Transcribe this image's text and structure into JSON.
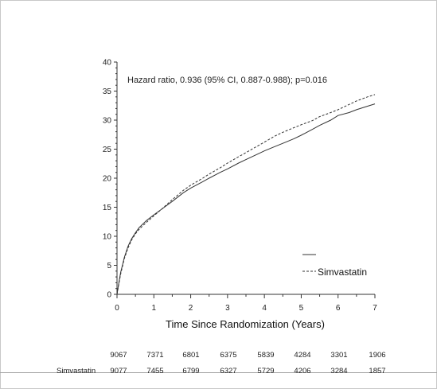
{
  "chart_data": {
    "type": "line",
    "title": "",
    "annotation": "Hazard ratio, 0.936 (95% CI, 0.887-0.988); p=0.016",
    "xlabel": "Time Since Randomization (Years)",
    "ylabel": "",
    "xlim": [
      0,
      7
    ],
    "ylim": [
      0,
      40
    ],
    "x_ticks": [
      0,
      1,
      2,
      3,
      4,
      5,
      6,
      7
    ],
    "y_ticks": [
      0,
      5,
      10,
      15,
      20,
      25,
      30,
      35,
      40
    ],
    "grid": false,
    "legend": {
      "placement": "bottom-right",
      "entries": [
        "",
        "Simvastatin"
      ]
    },
    "series": [
      {
        "name": "",
        "style": "solid",
        "x": [
          0,
          0.05,
          0.1,
          0.2,
          0.3,
          0.4,
          0.5,
          0.6,
          0.8,
          1.0,
          1.2,
          1.5,
          1.8,
          2.0,
          2.3,
          2.5,
          2.8,
          3.0,
          3.3,
          3.5,
          3.8,
          4.0,
          4.3,
          4.5,
          4.8,
          5.0,
          5.3,
          5.5,
          5.8,
          6.0,
          6.3,
          6.5,
          6.8,
          7.0
        ],
        "y": [
          0,
          2.0,
          3.8,
          6.4,
          8.3,
          9.6,
          10.6,
          11.5,
          12.7,
          13.7,
          14.6,
          16.0,
          17.5,
          18.3,
          19.3,
          20.0,
          21.0,
          21.6,
          22.6,
          23.2,
          24.1,
          24.7,
          25.5,
          26.0,
          26.8,
          27.4,
          28.4,
          29.1,
          30.0,
          30.8,
          31.3,
          31.8,
          32.4,
          32.8
        ]
      },
      {
        "name": "Simvastatin",
        "style": "dashed",
        "x": [
          0,
          0.05,
          0.1,
          0.2,
          0.3,
          0.4,
          0.5,
          0.6,
          0.8,
          1.0,
          1.2,
          1.5,
          1.8,
          2.0,
          2.3,
          2.5,
          2.8,
          3.0,
          3.3,
          3.5,
          3.8,
          4.0,
          4.3,
          4.5,
          4.8,
          5.0,
          5.3,
          5.5,
          5.8,
          6.0,
          6.3,
          6.5,
          6.8,
          7.0
        ],
        "y": [
          0,
          1.8,
          3.5,
          6.2,
          8.0,
          9.4,
          10.4,
          11.2,
          12.4,
          13.5,
          14.6,
          16.3,
          17.9,
          18.8,
          19.9,
          20.7,
          21.8,
          22.6,
          23.7,
          24.4,
          25.5,
          26.2,
          27.3,
          27.9,
          28.7,
          29.2,
          29.9,
          30.6,
          31.3,
          31.8,
          32.7,
          33.3,
          34.0,
          34.4
        ]
      }
    ],
    "risk_table": {
      "rows": [
        {
          "label": "",
          "values": [
            "9067",
            "7371",
            "6801",
            "6375",
            "5839",
            "4284",
            "3301",
            "1906"
          ]
        },
        {
          "label": "Simvastatin",
          "values": [
            "9077",
            "7455",
            "6799",
            "6327",
            "5729",
            "4206",
            "3284",
            "1857"
          ]
        }
      ]
    }
  }
}
